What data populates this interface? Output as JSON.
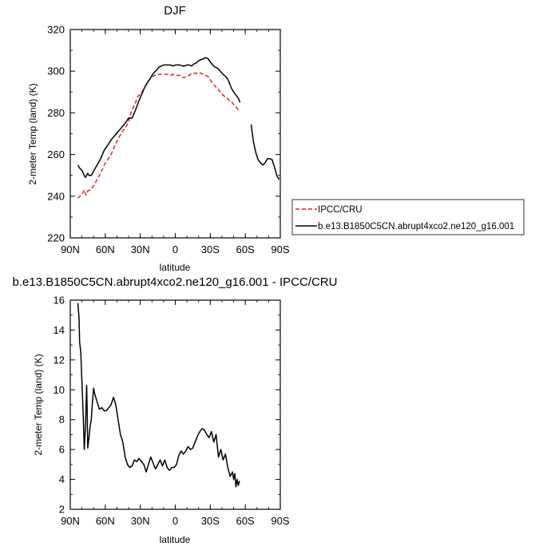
{
  "chart_data": [
    {
      "type": "line",
      "title": "DJF",
      "xlabel": "latitude",
      "ylabel": "2-meter Temp (land) (K)",
      "xlim": [
        90,
        -90
      ],
      "ylim": [
        220,
        320
      ],
      "x_ticks": [
        90,
        60,
        30,
        0,
        -30,
        -60,
        -90
      ],
      "x_tick_labels": [
        "90N",
        "60N",
        "30N",
        "0",
        "30S",
        "60S",
        "90S"
      ],
      "y_ticks": [
        220,
        240,
        260,
        280,
        300,
        320
      ],
      "y_tick_labels": [
        "220",
        "240",
        "260",
        "280",
        "300",
        "320"
      ],
      "legend_position": "outside-right",
      "series": [
        {
          "name": "IPCC/CRU",
          "color": "#e8201c",
          "dash": "dashed",
          "x": [
            83.5,
            80,
            78,
            76.5,
            75,
            73,
            70,
            67,
            64,
            61,
            58,
            55,
            52,
            50,
            48,
            45,
            43,
            40,
            38,
            36,
            34,
            32,
            30,
            28,
            26,
            24,
            22,
            20,
            18,
            16,
            14,
            12,
            10,
            8,
            6,
            4,
            2,
            0,
            -2,
            -4,
            -6,
            -8,
            -10,
            -12,
            -14,
            -16,
            -18,
            -20,
            -22,
            -24,
            -26,
            -28,
            -30,
            -32,
            -34,
            -36,
            -38,
            -40,
            -42,
            -44,
            -46,
            -48,
            -50,
            -52,
            -54,
            -55.5
          ],
          "y": [
            239,
            241,
            243,
            240.5,
            242.5,
            243,
            245,
            248,
            251,
            255,
            257.5,
            260,
            264,
            266.5,
            268.5,
            271.5,
            272.5,
            276,
            280,
            282.5,
            285,
            288,
            289,
            290.5,
            292.5,
            294,
            296,
            297,
            298,
            298,
            298.5,
            298.5,
            298.5,
            298.5,
            298.5,
            298,
            298.5,
            298,
            298,
            298,
            297,
            297,
            297.5,
            298,
            299,
            299,
            299,
            299.5,
            299,
            298.5,
            298,
            297.5,
            296,
            294,
            293,
            291.5,
            290.5,
            289,
            288,
            287.5,
            286,
            285.5,
            284,
            283,
            281.5,
            281
          ]
        },
        {
          "name": "b.e13.B1850C5CN.abrupt4xco2.ne120_g16.001",
          "color": "#000000",
          "dash": "solid",
          "x": [
            83.5,
            82,
            80,
            78,
            77,
            75,
            74,
            72,
            70,
            67,
            64,
            61,
            58,
            55,
            52,
            49,
            46,
            43,
            40,
            37,
            34,
            31,
            28,
            26,
            24,
            22,
            20,
            18,
            16,
            14,
            12,
            10,
            8,
            6,
            4,
            2,
            0,
            -2,
            -4,
            -6,
            -8,
            -10,
            -12,
            -14,
            -16,
            -18,
            -20,
            -22,
            -24,
            -26,
            -28,
            -30,
            -32,
            -34,
            -36,
            -38,
            -40,
            -42,
            -44,
            -46,
            -48,
            -50,
            -52,
            -54,
            -55.5
          ],
          "y": [
            255,
            253.5,
            252.5,
            250,
            249,
            251,
            250,
            250,
            252,
            255,
            258,
            262,
            264.5,
            267,
            269,
            271,
            273,
            275,
            277.5,
            277.5,
            281.5,
            286,
            290,
            292.5,
            294.5,
            296,
            298,
            299.5,
            300.5,
            302,
            302.5,
            303,
            303,
            303,
            303,
            302.5,
            303,
            303,
            303,
            302.5,
            302.5,
            303,
            303,
            302.5,
            303.5,
            304,
            305,
            305.5,
            306,
            306.5,
            306,
            304.5,
            303,
            302,
            301.5,
            300.5,
            299,
            298,
            297,
            295,
            292,
            290,
            288.5,
            287,
            285
          ]
        },
        {
          "name": "b.e13.B1850C5CN.abrupt4xco2.ne120_g16.001",
          "color": "#000000",
          "dash": "solid",
          "x": [
            -65,
            -67,
            -69,
            -71,
            -73,
            -75,
            -77,
            -79,
            -81,
            -83,
            -85,
            -87,
            -89
          ],
          "y": [
            274.5,
            266,
            261,
            257.5,
            256,
            255,
            256,
            258,
            258,
            257.5,
            254,
            250,
            248
          ]
        }
      ]
    },
    {
      "type": "line",
      "title": "b.e13.B1850C5CN.abrupt4xco2.ne120_g16.001 - IPCC/CRU",
      "xlabel": "latitude",
      "ylabel": "2-meter Temp (land) (K)",
      "xlim": [
        90,
        -90
      ],
      "ylim": [
        2,
        16
      ],
      "x_ticks": [
        90,
        60,
        30,
        0,
        -30,
        -60,
        -90
      ],
      "x_tick_labels": [
        "90N",
        "60N",
        "30N",
        "0",
        "30S",
        "60S",
        "90S"
      ],
      "y_ticks": [
        2,
        4,
        6,
        8,
        10,
        12,
        14,
        16
      ],
      "y_tick_labels": [
        "2",
        "4",
        "6",
        "8",
        "10",
        "12",
        "14",
        "16"
      ],
      "series": [
        {
          "color": "#000000",
          "dash": "solid",
          "x": [
            83.5,
            82.5,
            82,
            81,
            80,
            79,
            78,
            77,
            76,
            75.5,
            75,
            74,
            73,
            72,
            71,
            70,
            69,
            67,
            65,
            63,
            61,
            59,
            57,
            55,
            53,
            51,
            49,
            47,
            45,
            43,
            41,
            39,
            37,
            35,
            33,
            31,
            29,
            27,
            25,
            23,
            21,
            19,
            17,
            15,
            13,
            11,
            9,
            7,
            5,
            3,
            1,
            -1,
            -3,
            -5,
            -7,
            -9,
            -11,
            -13,
            -15,
            -17,
            -19,
            -21,
            -23,
            -25,
            -27,
            -29,
            -31,
            -33,
            -35,
            -37,
            -39,
            -41,
            -43,
            -45,
            -47,
            -49,
            -50,
            -51,
            -52,
            -53,
            -54,
            -55
          ],
          "y": [
            15.8,
            14.8,
            13.2,
            12.5,
            10.5,
            8.5,
            6.0,
            7.5,
            10.3,
            8.5,
            6.1,
            6.8,
            7.5,
            8.0,
            9.2,
            10.1,
            9.7,
            9.2,
            8.7,
            8.8,
            8.6,
            8.6,
            8.8,
            9.0,
            9.5,
            9.0,
            8.0,
            7.0,
            6.5,
            5.5,
            5.0,
            4.8,
            4.9,
            5.3,
            5.2,
            5.4,
            5.2,
            5.0,
            4.5,
            5.0,
            5.5,
            5.1,
            4.7,
            5.0,
            5.3,
            4.9,
            5.3,
            4.8,
            4.6,
            4.8,
            4.8,
            5.0,
            5.6,
            5.9,
            5.7,
            5.9,
            6.2,
            6.0,
            6.1,
            6.5,
            6.9,
            7.2,
            7.4,
            7.3,
            7.0,
            6.8,
            7.2,
            6.5,
            7.0,
            5.5,
            6.0,
            5.3,
            5.7,
            4.8,
            4.2,
            4.5,
            4.0,
            4.4,
            3.5,
            4.0,
            3.6,
            3.9
          ]
        }
      ]
    }
  ]
}
